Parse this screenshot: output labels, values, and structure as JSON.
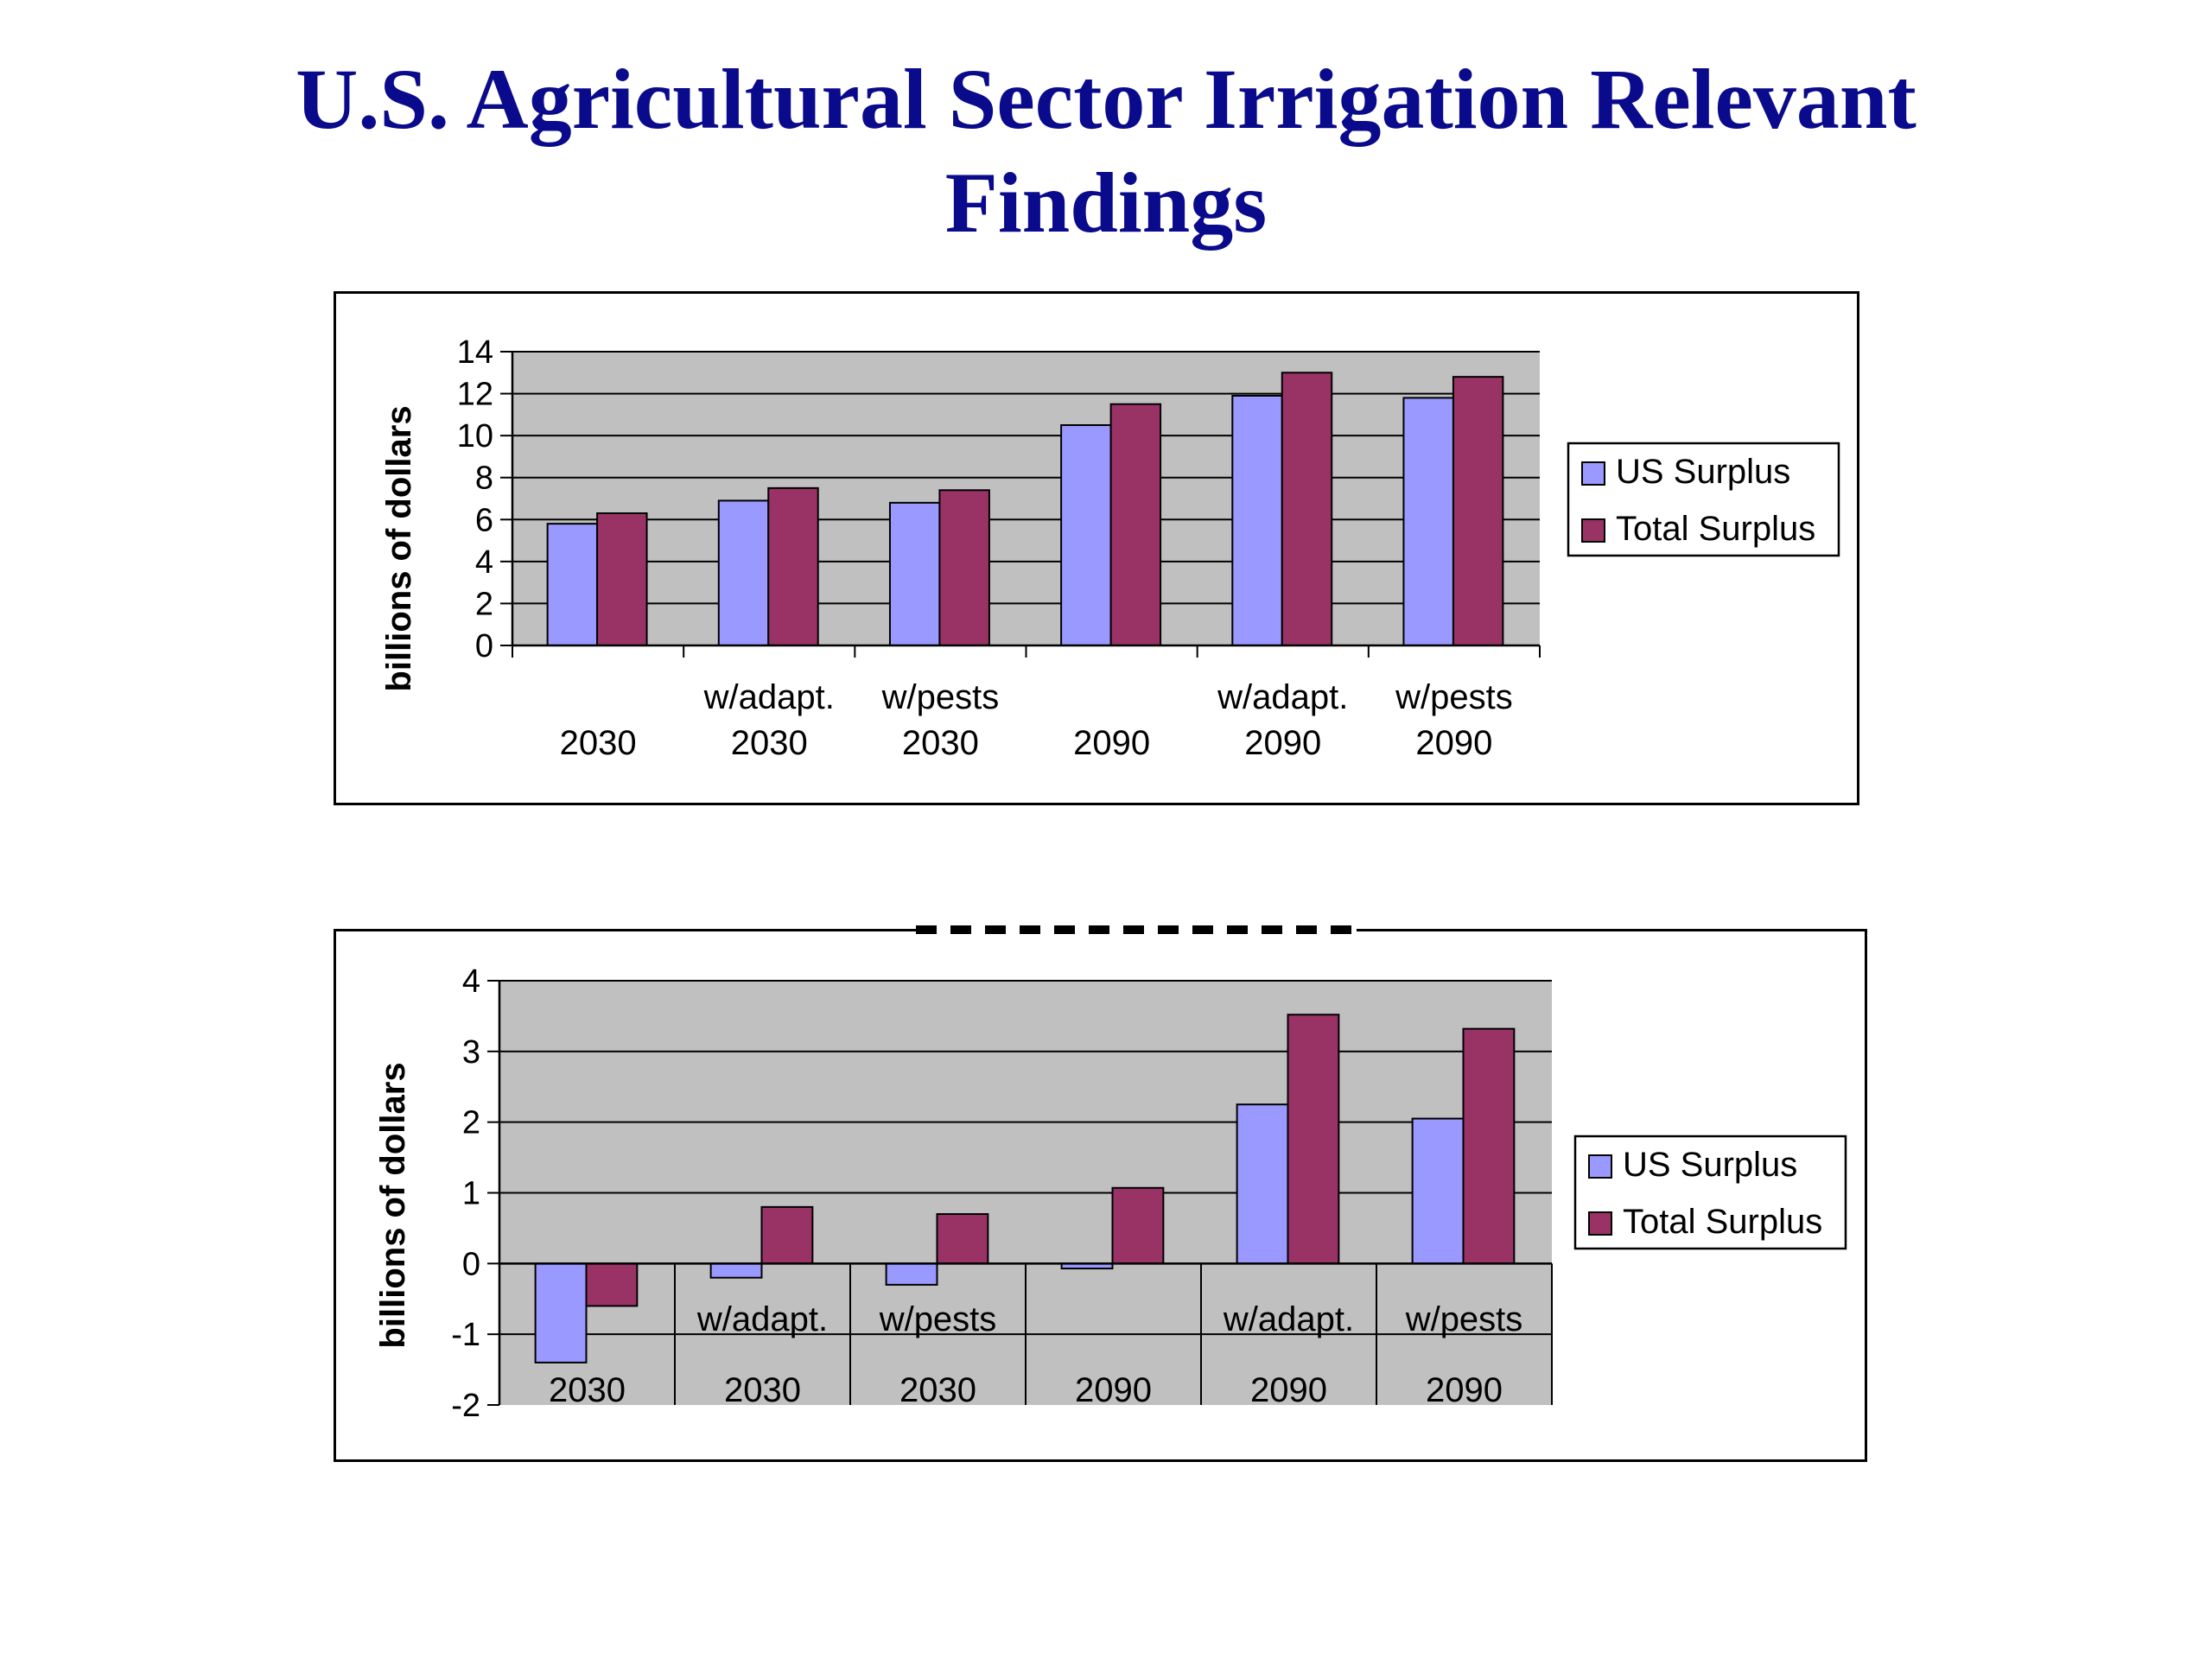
{
  "page": {
    "title_line1": "U.S. Agricultural Sector Irrigation Relevant",
    "title_line2": "Findings"
  },
  "colors": {
    "title": "#0a0a8c",
    "us_surplus": "#9999ff",
    "total_surplus": "#993366",
    "plot_bg": "#c0c0c0"
  },
  "chart_data": [
    {
      "type": "bar",
      "categories": [
        [
          "2030"
        ],
        [
          "w/adapt.",
          "2030"
        ],
        [
          "w/pests",
          "2030"
        ],
        [
          "2090"
        ],
        [
          "w/adapt.",
          "2090"
        ],
        [
          "w/pests",
          "2090"
        ]
      ],
      "series": [
        {
          "name": "US Surplus",
          "values": [
            5.8,
            6.9,
            6.8,
            10.5,
            11.9,
            11.8
          ]
        },
        {
          "name": "Total Surplus",
          "values": [
            6.3,
            7.5,
            7.4,
            11.5,
            13.0,
            12.8
          ]
        }
      ],
      "ylabel": "billions of dollars",
      "ylim": [
        0,
        14
      ],
      "yticks": [
        0,
        2,
        4,
        6,
        8,
        10,
        12,
        14
      ],
      "grid": true,
      "legend": "right"
    },
    {
      "type": "bar",
      "categories": [
        [
          "2030"
        ],
        [
          "w/adapt.",
          "2030"
        ],
        [
          "w/pests",
          "2030"
        ],
        [
          "2090"
        ],
        [
          "w/adapt.",
          "2090"
        ],
        [
          "w/pests",
          "2090"
        ]
      ],
      "series": [
        {
          "name": "US Surplus",
          "values": [
            -1.4,
            -0.2,
            -0.3,
            -0.07,
            2.25,
            2.05
          ]
        },
        {
          "name": "Total Surplus",
          "values": [
            -0.6,
            0.8,
            0.7,
            1.07,
            3.52,
            3.32
          ]
        }
      ],
      "ylabel": "billions of dollars",
      "ylim": [
        -2,
        4
      ],
      "yticks": [
        -2,
        -1,
        0,
        1,
        2,
        3,
        4
      ],
      "grid": true,
      "legend": "right"
    }
  ]
}
